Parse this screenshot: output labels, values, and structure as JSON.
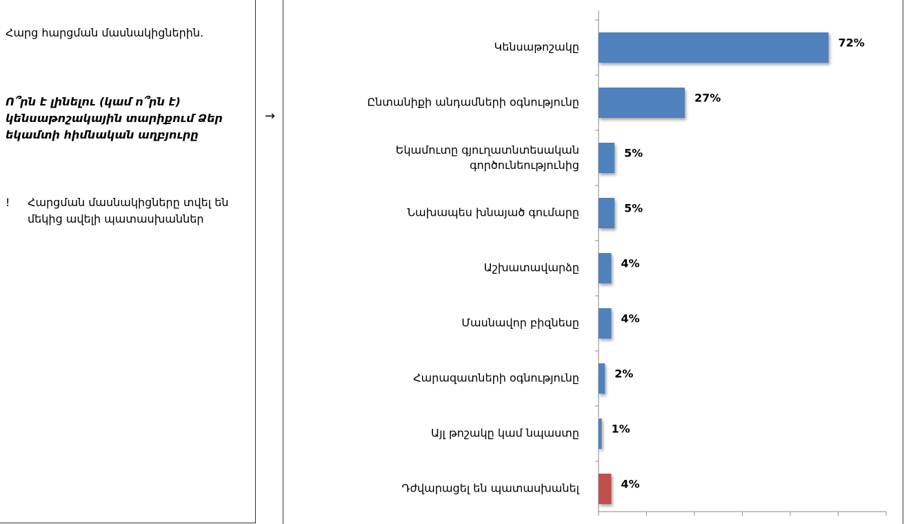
{
  "sidebar": {
    "intro": "Հարց հարցման մասնակիցներին.",
    "question": "Ո՞րն է լինելու (կամ ո՞րն է) կենսաթոշակային տարիքում Ձեր եկամտի հիմնական աղբյուրը",
    "note_mark": "!",
    "note": "Հարցման մասնակիցները տվել են մեկից ավելի պատասխաններ",
    "arrow": "→"
  },
  "chart_data": {
    "type": "hbar",
    "categories": [
      "Կենսաթոշակը",
      "Ընտանիքի անդամների օգնությունը",
      "Եկամուտը գյուղատնտեսական\nգործունեությունից",
      "Նախապես խնայած գումարը",
      "Աշխատավարձը",
      "Մասնավոր բիզնեսը",
      "Հարազատների օգնությունը",
      "Այլ թոշակը կամ նպաստը",
      "Դժվարացել են պատասխանել"
    ],
    "values": [
      72,
      27,
      5,
      5,
      4,
      4,
      2,
      1,
      4
    ],
    "value_labels": [
      "72%",
      "27%",
      "5%",
      "5%",
      "4%",
      "4%",
      "2%",
      "1%",
      "4%"
    ],
    "colors": [
      "#4f81bd",
      "#4f81bd",
      "#4f81bd",
      "#4f81bd",
      "#4f81bd",
      "#4f81bd",
      "#4f81bd",
      "#4f81bd",
      "#c0504d"
    ],
    "xlim": [
      0,
      90
    ],
    "xticks": [
      0,
      15,
      30,
      45,
      60,
      75,
      90
    ]
  }
}
